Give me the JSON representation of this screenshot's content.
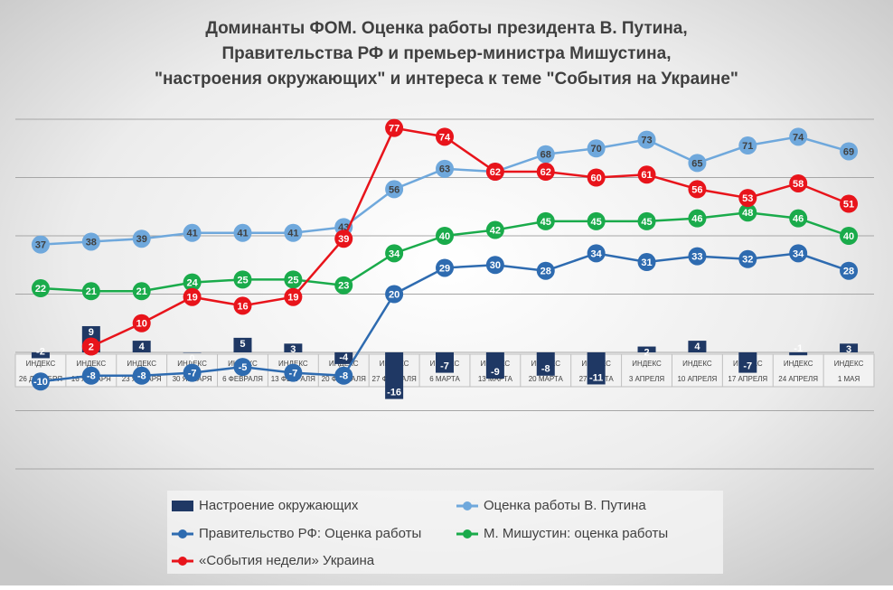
{
  "chart_data": {
    "type": "bar-line",
    "title": [
      "Доминанты ФОМ. Оценка работы президента В. Путина,",
      "Правительства РФ и премьер-министра Мишустина,",
      "\"настроения окружающих\" и интереса к теме \"События на Украине\""
    ],
    "category_prefix": "ИНДЕКС",
    "categories": [
      "26 ДЕКАБРЯ",
      "16 ЯНВАРЯ",
      "23 ЯНВАРЯ",
      "30 ЯНВАРЯ",
      "6 ФЕВРАЛЯ",
      "13 ФЕВРАЛЯ",
      "20 ФЕВРАЛЯ",
      "27 ФЕВРАЛЯ",
      "6 МАРТА",
      "13 МАРТА",
      "20 МАРТА",
      "27 МАРТА",
      "3 АПРЕЛЯ",
      "10 АПРЕЛЯ",
      "17 АПРЕЛЯ",
      "24 АПРЕЛЯ",
      "1 МАЯ"
    ],
    "ylim": [
      -40,
      80
    ],
    "yticks": [
      -40,
      -20,
      0,
      20,
      40,
      60,
      80
    ],
    "grid": true,
    "ytick_labels": false,
    "series": [
      {
        "name": "Настроение окружающих",
        "kind": "bar",
        "color": "#1f3864",
        "values": [
          -2,
          9,
          4,
          0,
          5,
          3,
          -4,
          -16,
          -7,
          -9,
          -8,
          -11,
          2,
          4,
          -7,
          -1,
          3
        ]
      },
      {
        "name": "Оценка работы В. Путина",
        "kind": "line",
        "color": "#6fa8dc",
        "values": [
          37,
          38,
          39,
          41,
          41,
          41,
          43,
          56,
          63,
          62,
          68,
          70,
          73,
          65,
          71,
          74,
          69
        ]
      },
      {
        "name": "Правительство РФ: Оценка работы",
        "kind": "line",
        "color": "#2e6bb0",
        "values": [
          -10,
          -8,
          -8,
          -7,
          -5,
          -7,
          -8,
          20,
          29,
          30,
          28,
          34,
          31,
          33,
          32,
          34,
          28
        ]
      },
      {
        "name": "М. Мишустин: оценка работы",
        "kind": "line",
        "color": "#1aab4b",
        "values": [
          22,
          21,
          21,
          24,
          25,
          25,
          23,
          34,
          40,
          42,
          45,
          45,
          45,
          46,
          48,
          46,
          40
        ]
      },
      {
        "name": "«События недели» Украина",
        "kind": "line",
        "color": "#e8141b",
        "values": [
          null,
          2,
          10,
          19,
          16,
          19,
          39,
          77,
          74,
          62,
          62,
          60,
          61,
          56,
          53,
          58,
          51
        ]
      }
    ]
  }
}
